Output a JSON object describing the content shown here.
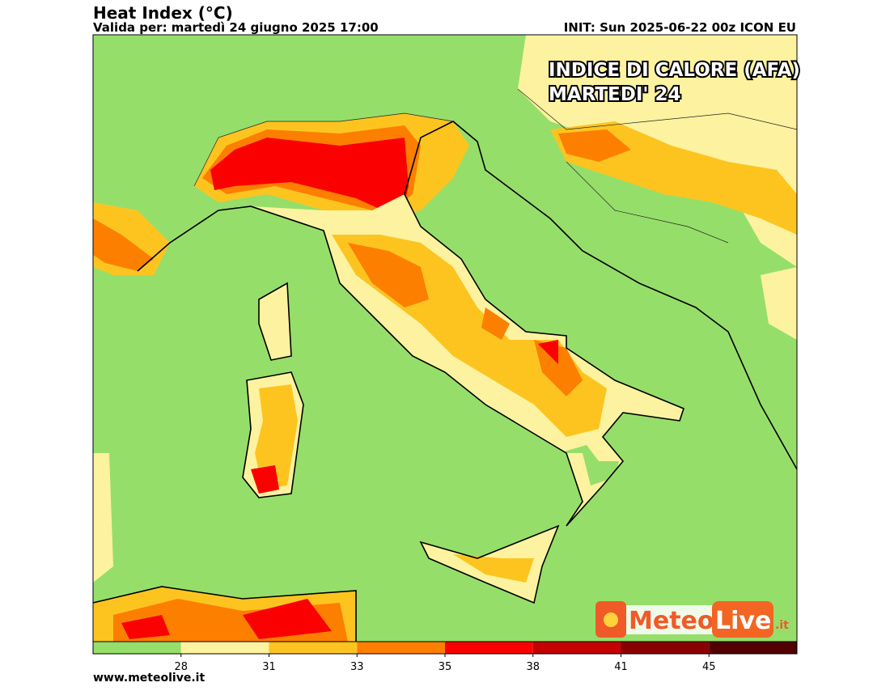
{
  "header": {
    "title": "Heat Index (°C)",
    "valid": "Valida per: martedì 24 giugno 2025 17:00",
    "init": "INIT: Sun 2025-06-22 00z ICON EU"
  },
  "overlay": {
    "line1": "INDICE DI CALORE (AFA)",
    "line2": "MARTEDI' 24"
  },
  "logo": {
    "meteo": "Meteo",
    "live": "Live",
    "tld": ".it"
  },
  "colorbar": {
    "colors": [
      "#96de6a",
      "#fdf29f",
      "#fdc420",
      "#fd7f00",
      "#fa0000",
      "#c40000",
      "#8a0000",
      "#520000"
    ],
    "ticks": [
      28,
      31,
      33,
      35,
      38,
      41,
      45
    ]
  },
  "footer": "www.meteolive.it"
}
